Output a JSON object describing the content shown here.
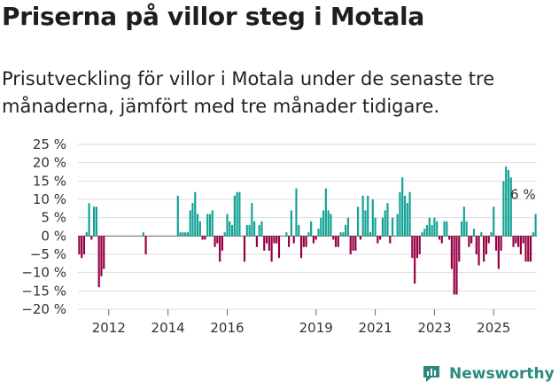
{
  "title": "Priserna på villor steg i Motala",
  "subtitle": "Prisutveckling för villor i Motala under de senaste tre månaderna, jämfört med tre månader tidigare.",
  "brand": "Newsworthy",
  "colors": {
    "positive": "#12a394",
    "negative": "#960043",
    "brand": "#2b8a7d"
  },
  "chart_data": {
    "type": "bar",
    "x_start": "2011-01",
    "x_interval": "month",
    "y_unit": "%",
    "ylim": [
      -20,
      25
    ],
    "y_ticks": [
      {
        "v": 25,
        "label": "25 %"
      },
      {
        "v": 20,
        "label": "20 %"
      },
      {
        "v": 15,
        "label": "15 %"
      },
      {
        "v": 10,
        "label": "10 %"
      },
      {
        "v": 5,
        "label": "5 %"
      },
      {
        "v": 0,
        "label": "0 %"
      },
      {
        "v": -5,
        "label": "−5 %"
      },
      {
        "v": -10,
        "label": "−10 %"
      },
      {
        "v": -15,
        "label": "−15 %"
      },
      {
        "v": -20,
        "label": "−20 %"
      }
    ],
    "x_ticks": [
      "2012",
      "2014",
      "2016",
      "2019",
      "2021",
      "2023",
      "2025"
    ],
    "annotation": "6 %",
    "values": [
      -5,
      -6,
      -5,
      1,
      9,
      -1,
      8,
      8,
      -14,
      -11,
      -9,
      null,
      null,
      null,
      null,
      null,
      null,
      null,
      null,
      null,
      null,
      null,
      null,
      null,
      null,
      null,
      1,
      -5,
      null,
      null,
      null,
      null,
      null,
      null,
      null,
      null,
      null,
      null,
      null,
      null,
      11,
      1,
      1,
      1,
      1,
      7,
      9,
      12,
      6,
      4,
      -1,
      -1,
      6,
      6,
      7,
      -3,
      -2,
      -7,
      -4,
      1,
      6,
      4,
      3,
      11,
      12,
      12,
      null,
      -7,
      3,
      3,
      9,
      4,
      -3,
      3,
      4,
      -4,
      -2,
      -4,
      -7,
      -2,
      -2,
      -6,
      null,
      null,
      1,
      -3,
      7,
      -2,
      13,
      3,
      -6,
      -3,
      -3,
      1,
      4,
      -2,
      -1,
      2,
      5,
      7,
      13,
      7,
      6,
      -1,
      -3,
      -3,
      1,
      1,
      3,
      5,
      -5,
      -4,
      -4,
      8,
      -1,
      11,
      7,
      11,
      1,
      10,
      5,
      -2,
      -1,
      5,
      7,
      9,
      -2,
      5,
      null,
      6,
      12,
      16,
      11,
      9,
      12,
      -6,
      -13,
      -6,
      -5,
      1,
      2,
      3,
      5,
      3,
      5,
      4,
      -1,
      -2,
      4,
      4,
      -1,
      -9,
      -16,
      -16,
      -7,
      4,
      8,
      4,
      -3,
      -2,
      2,
      -5,
      -8,
      1,
      -7,
      -5,
      -2,
      1,
      8,
      -4,
      -9,
      -4,
      15,
      19,
      18,
      16,
      -3,
      -2,
      -3,
      -5,
      -2,
      -7,
      -7,
      -7,
      1,
      6
    ]
  }
}
